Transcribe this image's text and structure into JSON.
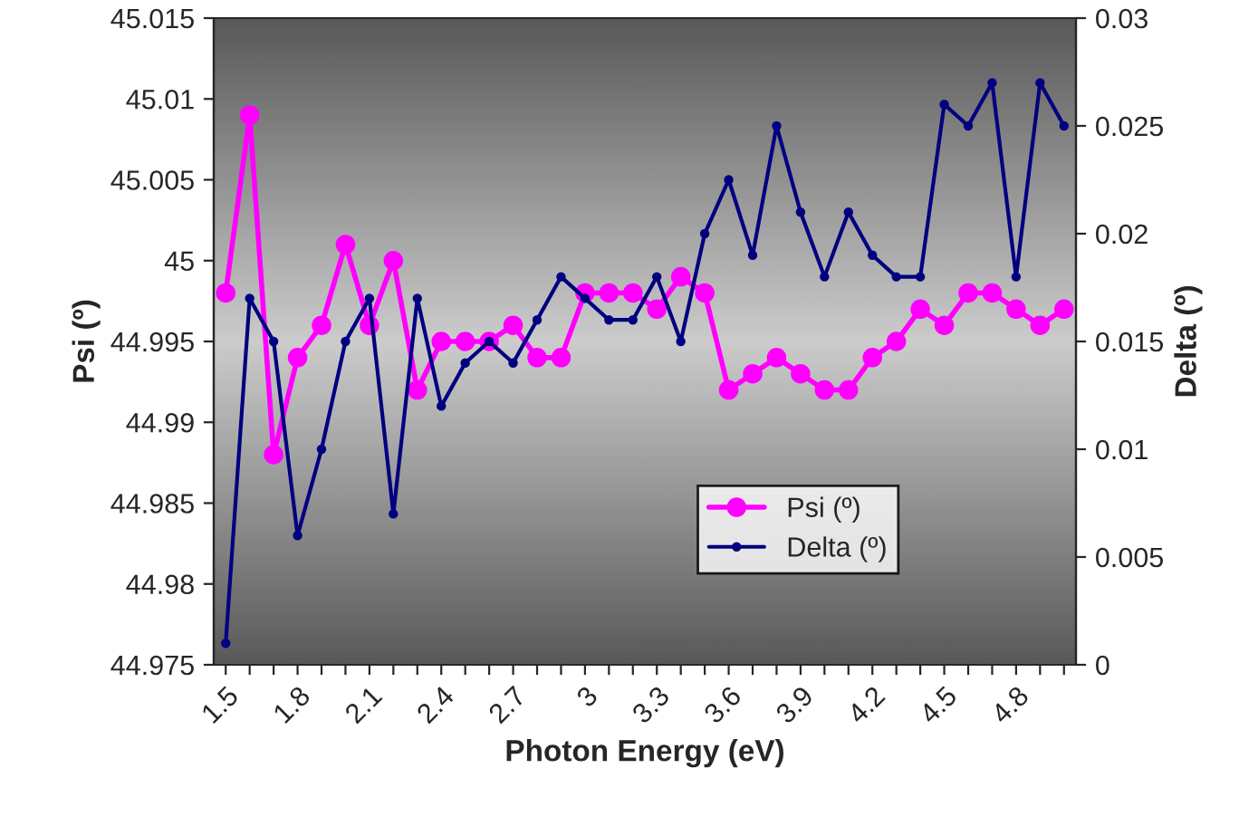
{
  "chart_data": {
    "type": "line",
    "xlabel": "Photon Energy (eV)",
    "ylabel": "Psi (º)",
    "y2label": "Delta (º)",
    "categories": [
      "1.5",
      null,
      null,
      "1.8",
      null,
      null,
      "2.1",
      null,
      null,
      "2.4",
      null,
      null,
      "2.7",
      null,
      null,
      "3",
      null,
      null,
      "3.3",
      null,
      null,
      "3.6",
      null,
      null,
      "3.9",
      null,
      null,
      "4.2",
      null,
      null,
      "4.5",
      null,
      null,
      "4.8",
      null,
      null
    ],
    "series": [
      {
        "name": "Psi (º)",
        "color": "#ff00ff",
        "values": [
          44.998,
          45.009,
          44.988,
          44.994,
          44.996,
          45.001,
          44.996,
          45.0,
          44.992,
          44.995,
          44.995,
          44.995,
          44.996,
          44.994,
          44.994,
          44.998,
          44.998,
          44.998,
          44.997,
          44.999,
          44.998,
          44.992,
          44.993,
          44.994,
          44.993,
          44.992,
          44.992,
          44.994,
          44.995,
          44.997,
          44.996,
          44.998,
          44.998,
          44.997,
          44.996,
          44.997
        ]
      },
      {
        "name": "Delta (º)",
        "color": "#000080",
        "axis": "y2",
        "values": [
          0.001,
          0.017,
          0.015,
          0.006,
          0.01,
          0.015,
          0.017,
          0.007,
          0.017,
          0.012,
          0.014,
          0.015,
          0.014,
          0.016,
          0.018,
          0.017,
          0.016,
          0.016,
          0.018,
          0.015,
          0.02,
          0.0225,
          0.019,
          0.025,
          0.021,
          0.018,
          0.021,
          0.019,
          0.018,
          0.018,
          0.026,
          0.025,
          0.027,
          0.018,
          0.027,
          0.025
        ]
      }
    ],
    "ylim": [
      44.975,
      45.015
    ],
    "yticks": [
      44.975,
      44.98,
      44.985,
      44.99,
      44.995,
      45,
      45.005,
      45.01,
      45.015
    ],
    "y2lim": [
      0,
      0.03
    ],
    "y2ticks": [
      0,
      0.005,
      0.01,
      0.015,
      0.02,
      0.025,
      0.03
    ],
    "grid": false,
    "legend": "bottom right",
    "marker": "circle",
    "line_style": "solid"
  }
}
